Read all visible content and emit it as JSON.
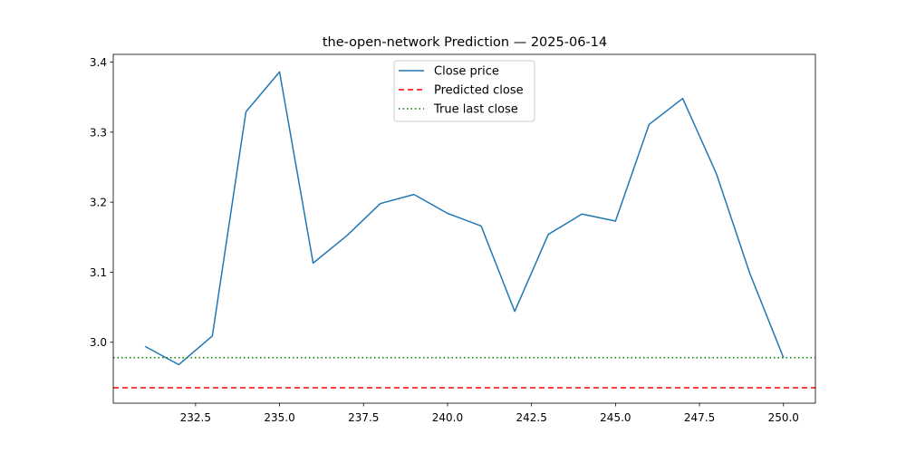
{
  "chart_data": {
    "type": "line",
    "title": "the-open-network Prediction — 2025-06-14",
    "xlabel": "",
    "ylabel": "",
    "xlim": [
      230.05,
      250.95
    ],
    "ylim": [
      2.913,
      3.411
    ],
    "x_ticks": [
      232.5,
      235.0,
      237.5,
      240.0,
      242.5,
      245.0,
      247.5,
      250.0
    ],
    "x_tick_labels": [
      "232.5",
      "235.0",
      "237.5",
      "240.0",
      "242.5",
      "245.0",
      "247.5",
      "250.0"
    ],
    "y_ticks": [
      3.0,
      3.1,
      3.2,
      3.3,
      3.4
    ],
    "y_tick_labels": [
      "3.0",
      "3.1",
      "3.2",
      "3.3",
      "3.4"
    ],
    "grid": false,
    "legend_position": "top-center",
    "series": [
      {
        "name": "Close price",
        "style": "solid",
        "color": "#1f77b4",
        "x": [
          231,
          232,
          233,
          234,
          235,
          236,
          237,
          238,
          239,
          240,
          241,
          242,
          243,
          244,
          245,
          246,
          247,
          248,
          249,
          250
        ],
        "y": [
          2.994,
          2.968,
          3.009,
          3.329,
          3.386,
          3.113,
          3.152,
          3.198,
          3.211,
          3.184,
          3.166,
          3.044,
          3.154,
          3.183,
          3.173,
          3.311,
          3.348,
          3.241,
          3.098,
          2.978
        ]
      }
    ],
    "hlines": [
      {
        "name": "Predicted close",
        "y": 2.935,
        "style": "dashed",
        "color": "#ff0000"
      },
      {
        "name": "True last close",
        "y": 2.978,
        "style": "dotted",
        "color": "#008000"
      }
    ]
  }
}
